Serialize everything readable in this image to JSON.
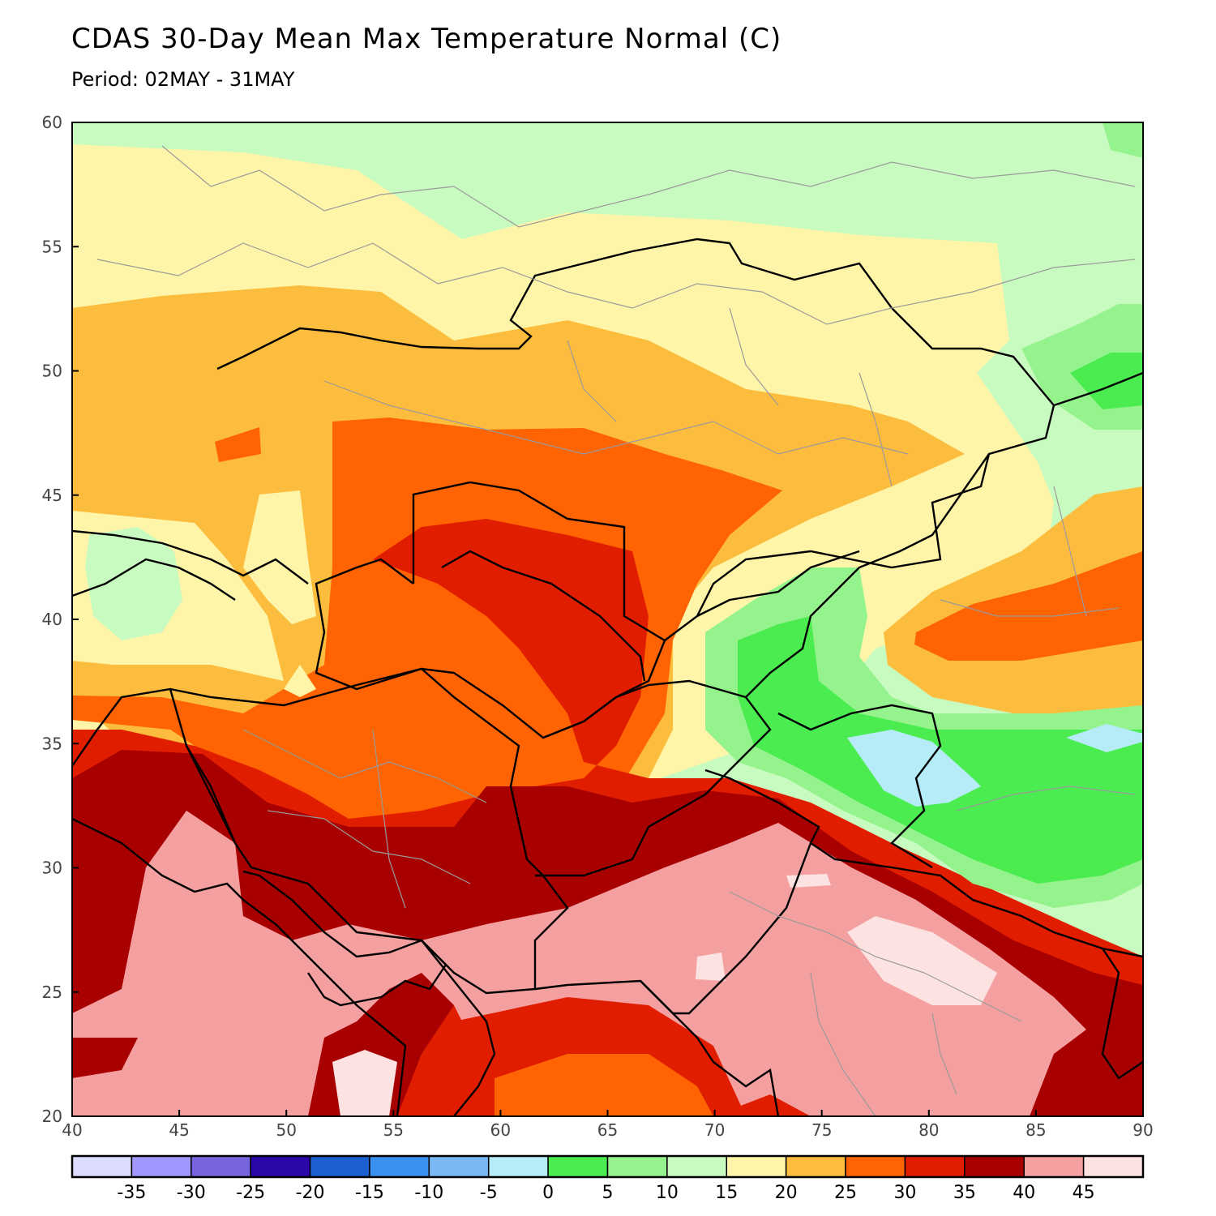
{
  "title": "CDAS 30-Day Mean Max Temperature Normal (C)",
  "subtitle": "Period: 02MAY - 31MAY",
  "map": {
    "lon_range": [
      40,
      90
    ],
    "lat_range": [
      20,
      60
    ],
    "lon_ticks": [
      "40",
      "45",
      "50",
      "55",
      "60",
      "65",
      "70",
      "75",
      "80",
      "85",
      "90"
    ],
    "lat_ticks": [
      "60",
      "55",
      "50",
      "45",
      "40",
      "35",
      "30",
      "25",
      "20"
    ]
  },
  "colorbar": {
    "colors": [
      "#dcdcff",
      "#a098ff",
      "#7765e0",
      "#2a07a8",
      "#1c5fcf",
      "#3a90ee",
      "#78b9f5",
      "#b5ecf7",
      "#4aec4f",
      "#95f38e",
      "#c8fbbf",
      "#fff5a8",
      "#fcbd3e",
      "#ff6302",
      "#e11d00",
      "#a80000",
      "#f4a0a0",
      "#fde2e2"
    ],
    "labels": [
      "-35",
      "-30",
      "-25",
      "-20",
      "-15",
      "-10",
      "-5",
      "0",
      "5",
      "10",
      "15",
      "20",
      "25",
      "30",
      "35",
      "40",
      "45"
    ]
  }
}
